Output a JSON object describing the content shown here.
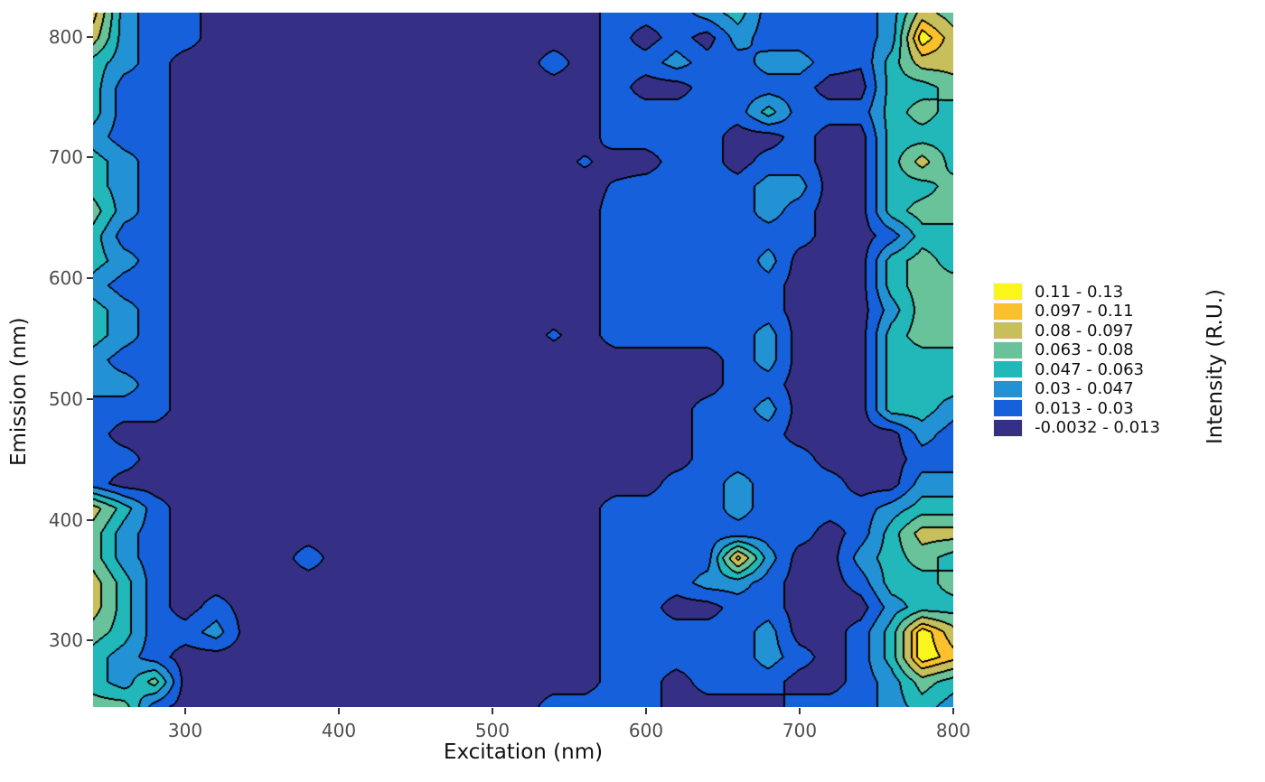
{
  "figure": {
    "background": "#FFFFFF"
  },
  "legend": {
    "title": "Intensity (R.U.)",
    "entries": [
      {
        "label": "0.11 - 0.13",
        "color": "#FAF51D"
      },
      {
        "label": "0.097 - 0.11",
        "color": "#FBC02E"
      },
      {
        "label": "0.08 - 0.097",
        "color": "#C6BF5C"
      },
      {
        "label": "0.063 - 0.08",
        "color": "#68C29A"
      },
      {
        "label": "0.047 - 0.063",
        "color": "#22B7B9"
      },
      {
        "label": "0.03 - 0.047",
        "color": "#2292D5"
      },
      {
        "label": "0.013 - 0.03",
        "color": "#1660DB"
      },
      {
        "label": "-0.0032 - 0.013",
        "color": "#353085"
      }
    ]
  },
  "chart_data": {
    "type": "heatmap",
    "style": "filled-contour",
    "title": "",
    "xlabel": "Excitation (nm)",
    "ylabel": "Emission (nm)",
    "x_ticks": [
      300,
      400,
      500,
      600,
      700,
      800
    ],
    "y_ticks": [
      300,
      400,
      500,
      600,
      700,
      800
    ],
    "x_domain": [
      240,
      800
    ],
    "y_domain": [
      245,
      820
    ],
    "tick_color": "#4D4D4D",
    "contour_line_color": "#000000",
    "breaks": [
      -0.0032,
      0.013,
      0.03,
      0.047,
      0.063,
      0.08,
      0.097,
      0.11,
      0.13
    ],
    "bin_colors": [
      "#353085",
      "#1660DB",
      "#2292D5",
      "#22B7B9",
      "#68C29A",
      "#C6BF5C",
      "#FBC02E",
      "#FAF51D"
    ],
    "char_values": {
      "0": 0.005,
      "1": 0.021,
      "2": 0.038,
      "3": 0.055,
      "4": 0.071,
      "5": 0.088,
      "6": 0.103,
      "7": 0.12,
      "a": 0.0155,
      "c": 0.0122
    },
    "grid_note": "rows top(em 820) to bottom(em 245), cols left(ex 240) to right(ex 800); chars map to intensity via char_values",
    "grid": [
      "62110000000000000111231111254",
      "521100000000000001010211a1275",
      "3210000000000001011211221a355",
      "31100000000000000100111100334",
      "31100000000000000111113111343",
      "21100000000000000111100100333",
      "3210000000000000a001101100353",
      "32100000000000000a11112200334",
      "42100000000000000111112100344",
      "31100000000000000111111100133",
      "321000000000000001111a2000343",
      "21100000000000000111111000344",
      "32100000000000000111111000244",
      "321000000000000a0111112000344",
      "21100000000000000000012000333",
      "22100000000000000000011000333",
      "11100000000000000000112000332",
      "10000000000000000000111000021",
      "11000000000000000000111100011",
      "10000000000000000001121110022",
      "53100000000000000111121111233",
      "42100000000000000111111101355",
      "42100001000000000111162002343",
      "53100000000000000111221001334",
      "53101000000000000110011000233",
      "43112000000000000111112001375",
      "32100000000000000111112101376",
      "32400000000000000110111001243",
      "44100000000000011110000111232"
    ]
  }
}
